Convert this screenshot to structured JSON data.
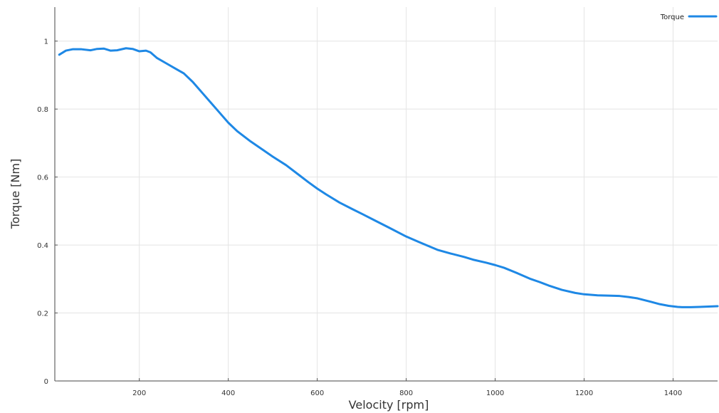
{
  "chart_data": {
    "type": "line",
    "title": "",
    "xlabel": "Velocity [rpm]",
    "ylabel": "Torque [Nm]",
    "xlim": [
      10,
      1500
    ],
    "ylim": [
      0,
      1.1
    ],
    "x_ticks": [
      200,
      400,
      600,
      800,
      1000,
      1200,
      1400
    ],
    "y_ticks": [
      0,
      0.2,
      0.4,
      0.6,
      0.8,
      1
    ],
    "x_tick_labels": [
      "200",
      "400",
      "600",
      "800",
      "1000",
      "1200",
      "1400"
    ],
    "y_tick_labels": [
      "0",
      "0.2",
      "0.4",
      "0.6",
      "0.8",
      "1"
    ],
    "grid": true,
    "legend": {
      "position": "top-right"
    },
    "series": [
      {
        "name": "Torque",
        "color": "#1e88e5",
        "x": [
          20,
          35,
          50,
          70,
          90,
          105,
          120,
          135,
          150,
          170,
          185,
          200,
          215,
          225,
          240,
          260,
          280,
          300,
          320,
          340,
          360,
          380,
          400,
          420,
          450,
          480,
          500,
          530,
          560,
          580,
          600,
          620,
          650,
          680,
          700,
          730,
          760,
          800,
          830,
          850,
          870,
          900,
          930,
          950,
          980,
          1000,
          1020,
          1050,
          1080,
          1100,
          1120,
          1150,
          1180,
          1200,
          1230,
          1260,
          1280,
          1300,
          1320,
          1350,
          1370,
          1390,
          1410,
          1420,
          1440,
          1460,
          1480,
          1500
        ],
        "y": [
          0.96,
          0.972,
          0.976,
          0.976,
          0.973,
          0.977,
          0.978,
          0.972,
          0.973,
          0.979,
          0.977,
          0.97,
          0.972,
          0.967,
          0.95,
          0.935,
          0.92,
          0.905,
          0.88,
          0.85,
          0.82,
          0.79,
          0.76,
          0.735,
          0.705,
          0.678,
          0.66,
          0.635,
          0.605,
          0.585,
          0.566,
          0.549,
          0.525,
          0.505,
          0.492,
          0.472,
          0.452,
          0.425,
          0.408,
          0.397,
          0.386,
          0.375,
          0.365,
          0.357,
          0.348,
          0.341,
          0.333,
          0.317,
          0.3,
          0.291,
          0.281,
          0.268,
          0.259,
          0.255,
          0.252,
          0.251,
          0.25,
          0.247,
          0.243,
          0.233,
          0.226,
          0.221,
          0.218,
          0.217,
          0.217,
          0.218,
          0.219,
          0.22
        ]
      }
    ]
  }
}
